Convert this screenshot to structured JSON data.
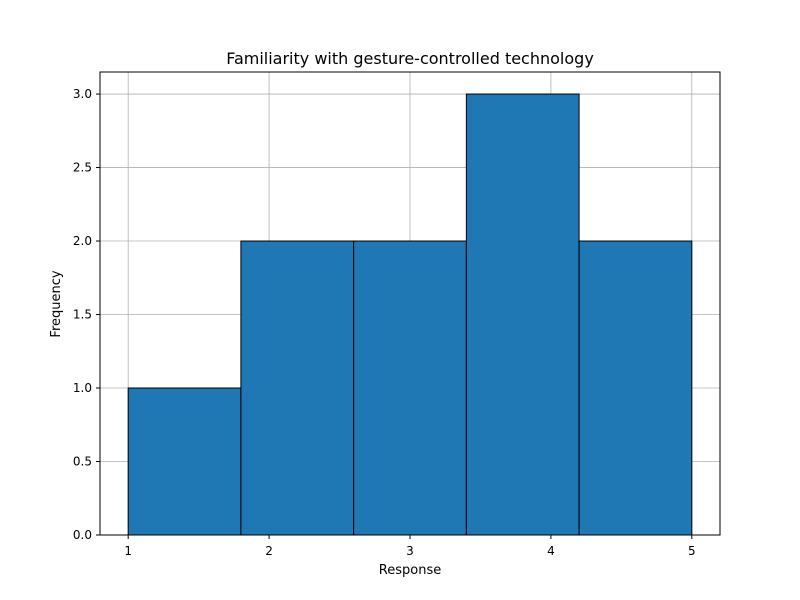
{
  "chart_data": {
    "type": "bar",
    "title": "Familiarity with gesture-controlled technology",
    "xlabel": "Response",
    "ylabel": "Frequency",
    "bins": [
      {
        "start": 1.0,
        "end": 1.8,
        "value": 1
      },
      {
        "start": 1.8,
        "end": 2.6,
        "value": 2
      },
      {
        "start": 2.6,
        "end": 3.4,
        "value": 2
      },
      {
        "start": 3.4,
        "end": 4.2,
        "value": 3
      },
      {
        "start": 4.2,
        "end": 5.0,
        "value": 2
      }
    ],
    "xlim": [
      0.8,
      5.2
    ],
    "ylim": [
      0,
      3.15
    ],
    "xticks": [
      1,
      2,
      3,
      4,
      5
    ],
    "xtick_labels": [
      "1",
      "2",
      "3",
      "4",
      "5"
    ],
    "yticks": [
      0,
      0.5,
      1.0,
      1.5,
      2.0,
      2.5,
      3.0
    ],
    "ytick_labels": [
      "0.0",
      "0.5",
      "1.0",
      "1.5",
      "2.0",
      "2.5",
      "3.0"
    ],
    "grid": true,
    "colors": {
      "bar_fill": "#1f77b4",
      "bar_edge": "#000000",
      "grid": "#b0b0b0",
      "axes": "#000000"
    }
  }
}
